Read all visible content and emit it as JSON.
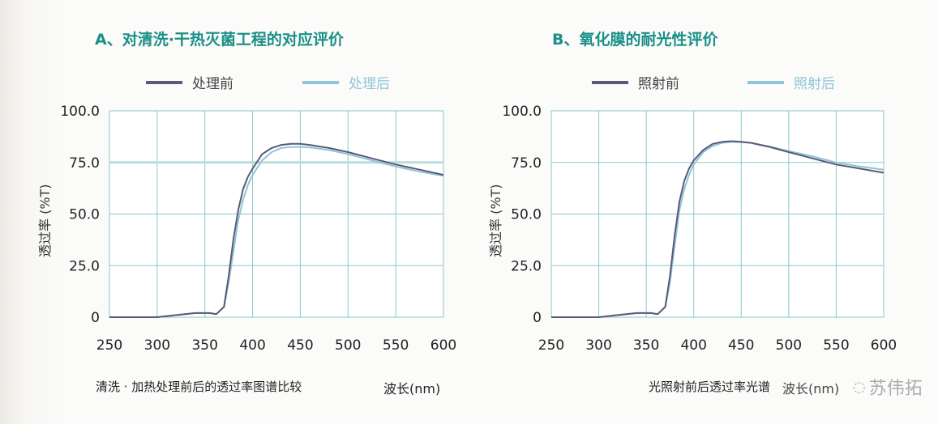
{
  "colors": {
    "before": "#5a5a78",
    "after": "#8ec5d8",
    "grid": "#8cc7c9",
    "title": "#1a8f87",
    "reference": "#b9dcdc"
  },
  "watermark": "苏伟拓",
  "chart_data": [
    {
      "type": "line",
      "title": "A、对清洗·干热灭菌工程的对应评价",
      "caption": "清洗 · 加热处理前后的透过率图谱比较",
      "xlabel": "波长(nm)",
      "ylabel": "透过率 (%T)",
      "xlim": [
        250,
        600
      ],
      "ylim": [
        0,
        100
      ],
      "grid": true,
      "legend": "top",
      "xticks": [
        "250",
        "300",
        "350",
        "400",
        "450",
        "500",
        "550",
        "600"
      ],
      "yticks": [
        "0",
        "25.0",
        "50.0",
        "75.0",
        "100.0"
      ],
      "reference_line": 75,
      "x": [
        250,
        300,
        320,
        340,
        355,
        362,
        370,
        375,
        380,
        385,
        390,
        395,
        400,
        410,
        420,
        430,
        440,
        450,
        460,
        480,
        500,
        525,
        550,
        575,
        600
      ],
      "series": [
        {
          "name": "处理前",
          "values": [
            0,
            0,
            1,
            2,
            2,
            1.5,
            5,
            20,
            38,
            52,
            62,
            68,
            72,
            79,
            82,
            83.5,
            84,
            84,
            83.5,
            82,
            80,
            77,
            74,
            71.5,
            69
          ]
        },
        {
          "name": "处理后",
          "values": [
            0,
            0,
            1,
            2,
            2,
            1.5,
            5,
            17,
            32,
            47,
            57,
            64,
            69,
            76,
            80,
            82,
            82.5,
            82.5,
            82.3,
            81,
            79,
            76,
            73,
            70.5,
            68.5
          ]
        }
      ]
    },
    {
      "type": "line",
      "title": "B、氧化膜的耐光性评价",
      "caption": "光照射前后透过率光谱",
      "xlabel": "波长(nm)",
      "ylabel": "透过率 (%T)",
      "xlim": [
        250,
        600
      ],
      "ylim": [
        0,
        100
      ],
      "grid": true,
      "legend": "top",
      "xticks": [
        "250",
        "300",
        "350",
        "400",
        "450",
        "500",
        "550",
        "600"
      ],
      "yticks": [
        "0",
        "25.0",
        "50.0",
        "75.0",
        "100.0"
      ],
      "x": [
        250,
        300,
        320,
        340,
        355,
        362,
        370,
        375,
        380,
        385,
        390,
        395,
        400,
        410,
        420,
        430,
        440,
        450,
        460,
        480,
        500,
        525,
        550,
        575,
        600
      ],
      "series": [
        {
          "name": "照射前",
          "values": [
            0,
            0,
            1,
            2,
            2,
            1.5,
            5,
            20,
            40,
            56,
            66,
            72,
            76,
            81,
            84,
            85,
            85.3,
            85,
            84.5,
            82.5,
            80,
            77,
            74,
            72,
            70
          ]
        },
        {
          "name": "照射后",
          "values": [
            0,
            0,
            1,
            2,
            2,
            1.5,
            5,
            17,
            35,
            52,
            62,
            69,
            74,
            80,
            83,
            84.5,
            85,
            84.8,
            84.5,
            82.7,
            80.5,
            78,
            75,
            73,
            71.5
          ]
        }
      ]
    }
  ]
}
